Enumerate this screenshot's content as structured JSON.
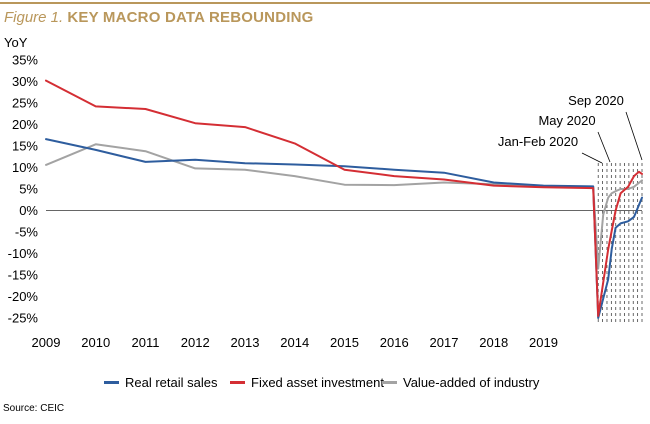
{
  "header": {
    "figure_label": "Figure 1.",
    "title": "KEY MACRO DATA REBOUNDING"
  },
  "source": "Source: CEIC",
  "chart_data": {
    "type": "line",
    "title": "KEY MACRO DATA REBOUNDING",
    "ylabel": "YoY",
    "ylim": [
      -25,
      35
    ],
    "yticks": [
      35,
      30,
      25,
      20,
      15,
      10,
      5,
      0,
      -5,
      -10,
      -15,
      -20,
      -25
    ],
    "ytick_labels": [
      "35%",
      "30%",
      "25%",
      "20%",
      "15%",
      "10%",
      "5%",
      "0%",
      "-5%",
      "-10%",
      "-15%",
      "-20%",
      "-25%"
    ],
    "xticks": [
      2009,
      2010,
      2011,
      2012,
      2013,
      2014,
      2015,
      2016,
      2017,
      2018,
      2019
    ],
    "xtick_labels": [
      "2009",
      "2010",
      "2011",
      "2012",
      "2013",
      "2014",
      "2015",
      "2016",
      "2017",
      "2018",
      "2019"
    ],
    "xlim": [
      2009,
      2020.98
    ],
    "legend_position": "bottom",
    "grid": false,
    "monthly_markers_range": [
      2020.1,
      2020.98
    ],
    "annotations": [
      {
        "text": "Sep 2020",
        "x": 2020.7
      },
      {
        "text": "May 2020",
        "x": 2020.37
      },
      {
        "text": "Jan-Feb 2020",
        "x": 2020.1
      }
    ],
    "series": [
      {
        "name": "Real retail sales",
        "color": "#2e5d9e",
        "x": [
          2009,
          2010,
          2011,
          2012,
          2013,
          2014,
          2015,
          2016,
          2017,
          2018,
          2019,
          2020,
          2020.1,
          2020.3,
          2020.37,
          2020.45,
          2020.55,
          2020.7,
          2020.82,
          2020.98
        ],
        "y": [
          16.6,
          14.1,
          11.3,
          11.8,
          11.0,
          10.7,
          10.3,
          9.5,
          8.8,
          6.5,
          5.8,
          5.6,
          -25.0,
          -16.0,
          -9.0,
          -4.0,
          -3.0,
          -2.5,
          -1.5,
          3.0
        ]
      },
      {
        "name": "Fixed asset investment",
        "color": "#d42e34",
        "x": [
          2009,
          2010,
          2011,
          2012,
          2013,
          2014,
          2015,
          2016,
          2017,
          2018,
          2019,
          2020,
          2020.1,
          2020.3,
          2020.45,
          2020.55,
          2020.7,
          2020.82,
          2020.92,
          2020.98
        ],
        "y": [
          30.2,
          24.2,
          23.6,
          20.3,
          19.4,
          15.6,
          9.5,
          8.0,
          7.2,
          5.8,
          5.4,
          5.2,
          -24.5,
          -9.0,
          0.0,
          4.0,
          5.5,
          8.0,
          9.0,
          8.5
        ]
      },
      {
        "name": "Value-added of industry",
        "color": "#a3a3a3",
        "x": [
          2009,
          2010,
          2011,
          2012,
          2013,
          2014,
          2015,
          2016,
          2017,
          2018,
          2019,
          2020,
          2020.1,
          2020.2,
          2020.3,
          2020.37,
          2020.45,
          2020.55,
          2020.7,
          2020.82,
          2020.98
        ],
        "y": [
          10.6,
          15.4,
          13.8,
          9.8,
          9.5,
          8.0,
          6.0,
          5.9,
          6.5,
          6.1,
          5.7,
          5.5,
          -13.5,
          -1.0,
          3.0,
          4.0,
          4.5,
          5.0,
          5.0,
          5.5,
          7.0
        ]
      }
    ]
  }
}
